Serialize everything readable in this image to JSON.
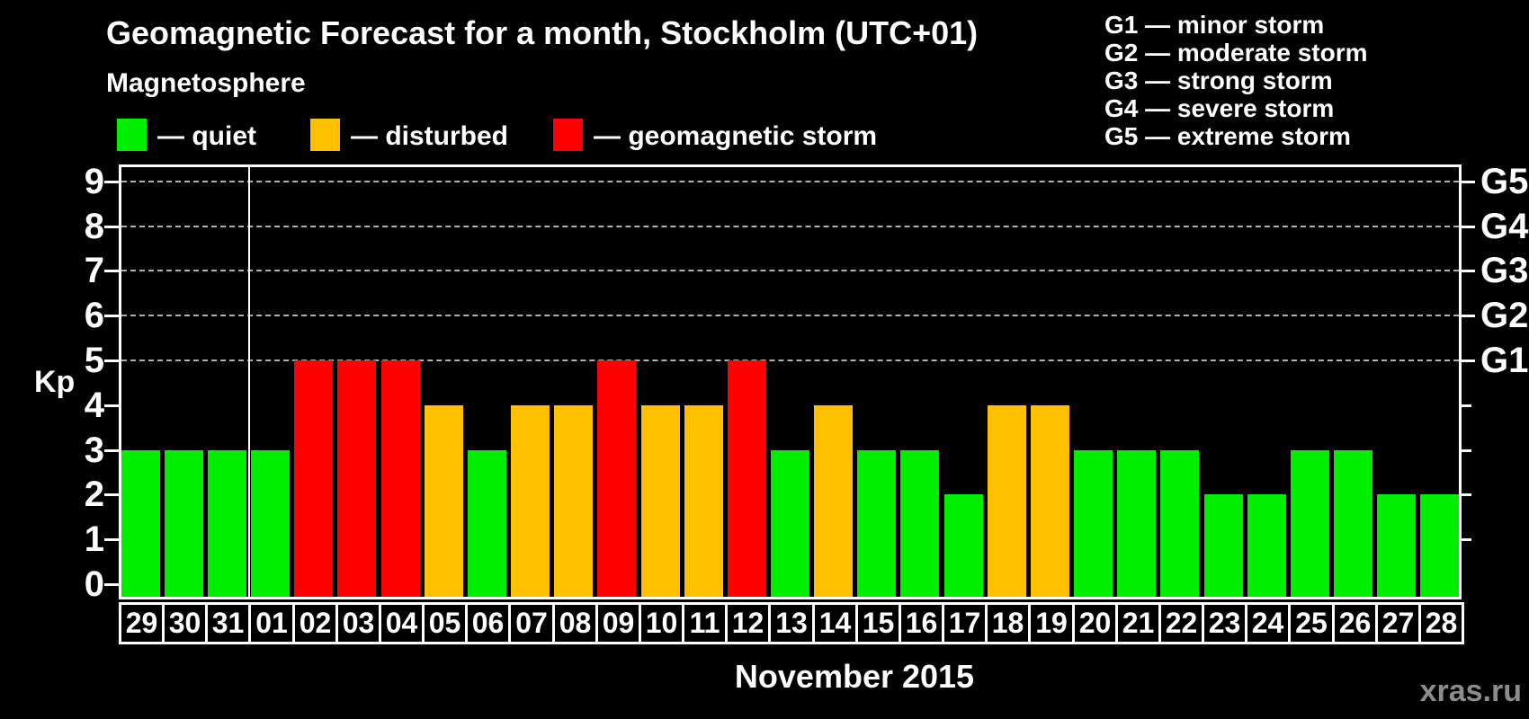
{
  "header": {
    "title": "Geomagnetic Forecast for a month, Stockholm (UTC+01)",
    "subtitle": "Magnetosphere"
  },
  "legend": {
    "items": [
      {
        "key": "quiet",
        "label": "— quiet"
      },
      {
        "key": "disturbed",
        "label": "— disturbed"
      },
      {
        "key": "storm",
        "label": "— geomagnetic storm"
      }
    ]
  },
  "g_scale_legend": {
    "lines": [
      "G1 — minor storm",
      "G2 — moderate storm",
      "G3 — strong storm",
      "G4 — severe storm",
      "G5 — extreme storm"
    ]
  },
  "y_axis": {
    "label": "Kp",
    "tick_values": [
      0,
      1,
      2,
      3,
      4,
      5,
      6,
      7,
      8,
      9
    ]
  },
  "right_axis": {
    "labels": [
      {
        "text": "G1",
        "kp": 5
      },
      {
        "text": "G2",
        "kp": 6
      },
      {
        "text": "G3",
        "kp": 7
      },
      {
        "text": "G4",
        "kp": 8
      },
      {
        "text": "G5",
        "kp": 9
      }
    ],
    "minor_tick_values": [
      1,
      2,
      3,
      4
    ]
  },
  "x_axis": {
    "month_label": "November 2015"
  },
  "watermark": "xras.ru",
  "colors": {
    "quiet": "#00ee00",
    "disturbed": "#ffc000",
    "storm": "#ff0000",
    "grid": "#b0b0b0",
    "axis": "#ffffff",
    "background": "#000000"
  },
  "chart_data": {
    "type": "bar",
    "title": "Geomagnetic Forecast for a month, Stockholm (UTC+01)",
    "xlabel": "November 2015",
    "ylabel": "Kp",
    "ylim": [
      0,
      9
    ],
    "grid_kp_levels": [
      5,
      6,
      7,
      8,
      9
    ],
    "month_boundary_after_index": 2,
    "categories": [
      "29",
      "30",
      "31",
      "01",
      "02",
      "03",
      "04",
      "05",
      "06",
      "07",
      "08",
      "09",
      "10",
      "11",
      "12",
      "13",
      "14",
      "15",
      "16",
      "17",
      "18",
      "19",
      "20",
      "21",
      "22",
      "23",
      "24",
      "25",
      "26",
      "27",
      "28"
    ],
    "values": [
      3,
      3,
      3,
      3,
      5,
      5,
      5,
      4,
      3,
      4,
      4,
      5,
      4,
      4,
      5,
      3,
      4,
      3,
      3,
      2,
      4,
      4,
      3,
      3,
      3,
      2,
      2,
      3,
      3,
      2,
      2
    ],
    "states": [
      "quiet",
      "quiet",
      "quiet",
      "quiet",
      "storm",
      "storm",
      "storm",
      "disturbed",
      "quiet",
      "disturbed",
      "disturbed",
      "storm",
      "disturbed",
      "disturbed",
      "storm",
      "quiet",
      "disturbed",
      "quiet",
      "quiet",
      "quiet",
      "disturbed",
      "disturbed",
      "quiet",
      "quiet",
      "quiet",
      "quiet",
      "quiet",
      "quiet",
      "quiet",
      "quiet",
      "quiet"
    ]
  }
}
